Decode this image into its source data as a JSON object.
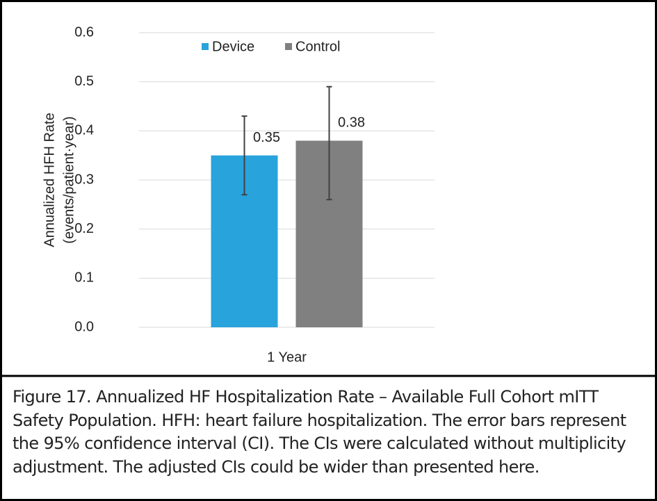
{
  "chart_data": {
    "type": "bar",
    "categories": [
      "1 Year"
    ],
    "series": [
      {
        "name": "Device",
        "color": "#29a3dc",
        "values": [
          0.35
        ],
        "error_low": [
          0.27
        ],
        "error_high": [
          0.43
        ]
      },
      {
        "name": "Control",
        "color": "#808080",
        "values": [
          0.38
        ],
        "error_low": [
          0.26
        ],
        "error_high": [
          0.49
        ]
      }
    ],
    "y_label": [
      "Annualized  HFH Rate",
      "(events/patient·year)"
    ],
    "ylim": [
      0,
      0.6
    ],
    "yticks": [
      {
        "value": 0,
        "label": "0.0"
      },
      0.1,
      0.2,
      0.3,
      0.4,
      0.5,
      0.6
    ],
    "grid": true,
    "legend": "top"
  },
  "caption": "Figure 17. Annualized HF Hospitalization Rate – Available Full Cohort mITT Safety Population. HFH: heart failure hospitalization. The error bars represent the 95% confidence interval (CI). The CIs were calculated without multiplicity adjustment. The adjusted CIs could be wider than presented here."
}
